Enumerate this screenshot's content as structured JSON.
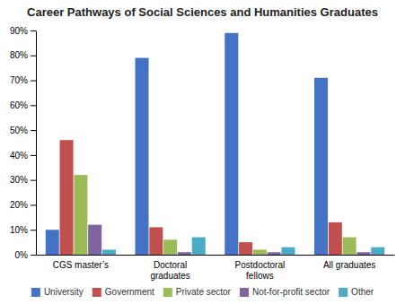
{
  "chart_data": {
    "type": "bar",
    "title": "Career Pathways of Social Sciences and Humanities Graduates",
    "categories": [
      "CGS master’s",
      "Doctoral\ngraduates",
      "Postdoctoral\nfellows",
      "All graduates"
    ],
    "series": [
      {
        "name": "University",
        "color": "#4472C4",
        "values": [
          10,
          79,
          89,
          71
        ]
      },
      {
        "name": "Government",
        "color": "#C0504D",
        "values": [
          46,
          11,
          5,
          13
        ]
      },
      {
        "name": "Private sector",
        "color": "#9BBB59",
        "values": [
          32,
          6,
          2,
          7
        ]
      },
      {
        "name": "Not-for-profit sector",
        "color": "#8064A2",
        "values": [
          12,
          1,
          1,
          1
        ]
      },
      {
        "name": "Other",
        "color": "#4BACC6",
        "values": [
          2,
          7,
          3,
          3
        ]
      }
    ],
    "ylim": [
      0,
      90
    ],
    "yticks": [
      {
        "value": 0,
        "label": "0%"
      },
      {
        "value": 10,
        "label": "10%"
      },
      {
        "value": 20,
        "label": "20%"
      },
      {
        "value": 30,
        "label": "30%"
      },
      {
        "value": 40,
        "label": "40%"
      },
      {
        "value": 50,
        "label": "50%"
      },
      {
        "value": 60,
        "label": "60%"
      },
      {
        "value": 70,
        "label": "70%"
      },
      {
        "value": 80,
        "label": "80%"
      },
      {
        "value": 90,
        "label": "90%"
      }
    ],
    "grid": false,
    "legend": "bottom"
  }
}
